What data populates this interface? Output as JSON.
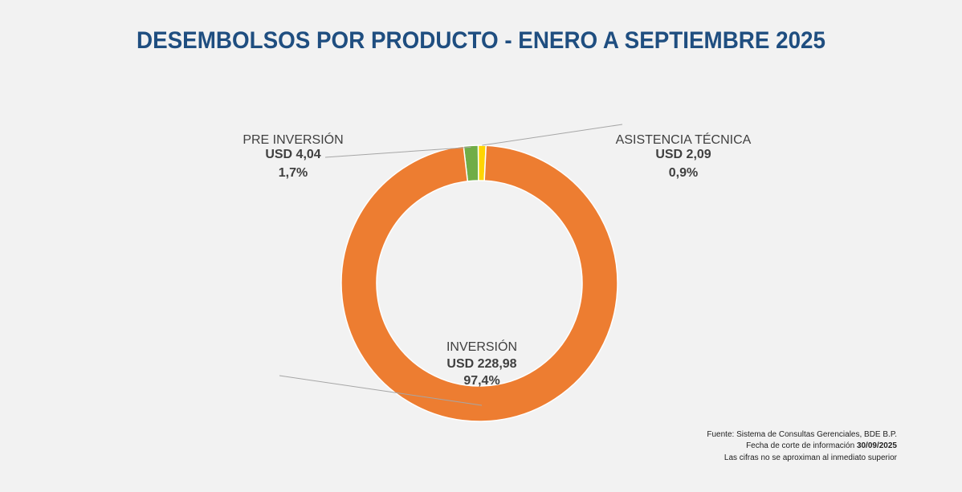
{
  "chart_data": {
    "type": "pie",
    "variant": "donut",
    "title": "DESEMBOLSOS POR PRODUCTO - ENERO A SEPTIEMBRE 2025",
    "slices": [
      {
        "label": "PRE INVERSIÓN",
        "value_text": "USD 4,04",
        "value": 4.04,
        "percent": 1.7,
        "percent_text": "1,7%",
        "color": "#70AD47"
      },
      {
        "label": "ASISTENCIA TÉCNICA",
        "value_text": "USD 2,09",
        "value": 2.09,
        "percent": 0.9,
        "percent_text": "0,9%",
        "color": "#FFD500"
      },
      {
        "label": "INVERSIÓN",
        "value_text": "USD 228,98",
        "value": 228.98,
        "percent": 97.4,
        "percent_text": "97,4%",
        "color": "#ED7D31"
      }
    ]
  },
  "footnote": {
    "source": "Fuente: Sistema de Consultas Gerenciales, BDE B.P.",
    "cutoff_label": "Fecha de corte de información",
    "cutoff_date": "30/09/2025",
    "rounding": "Las cifras no se aproximan al inmediato superior"
  },
  "colors": {
    "title": "#1F4E80",
    "background": "#F2F2F2"
  }
}
